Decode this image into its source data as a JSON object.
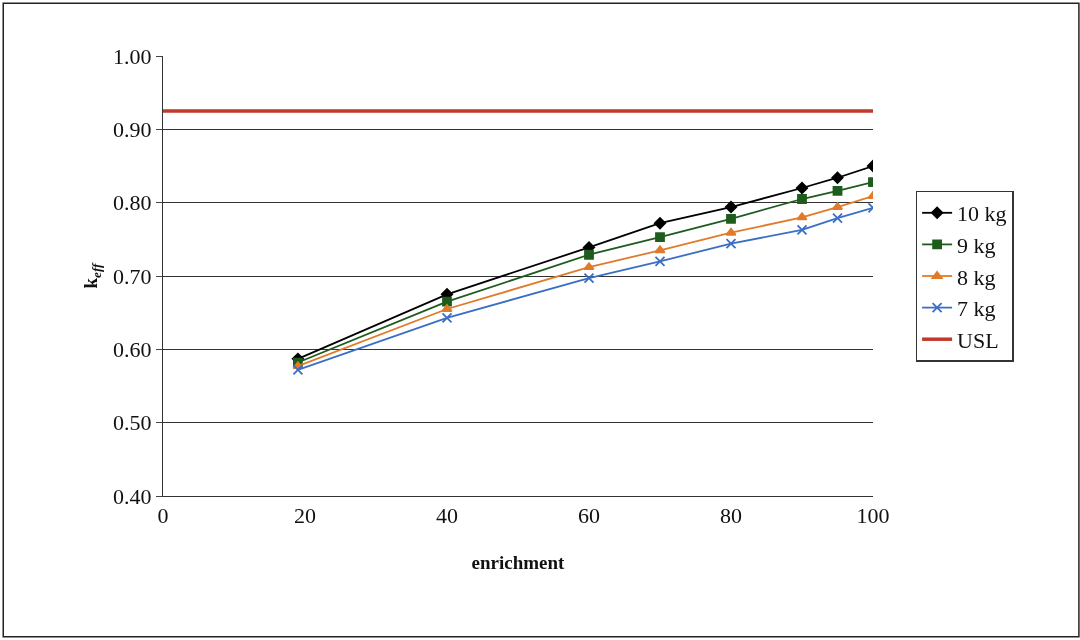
{
  "chart_data": {
    "type": "line",
    "xlabel": "enrichment",
    "ylabel": "k$_{eff}$",
    "x": [
      19,
      40,
      60,
      70,
      80,
      90,
      95,
      100
    ],
    "xlim": [
      0,
      100
    ],
    "xticks": [
      0,
      20,
      40,
      60,
      80,
      100
    ],
    "ylim": [
      0.4,
      1.0
    ],
    "yticks": [
      {
        "value": 0.4,
        "label": "0.40"
      },
      {
        "value": 0.5,
        "label": "0.50"
      },
      {
        "value": 0.6,
        "label": "0.60"
      },
      {
        "value": 0.7,
        "label": "0.70"
      },
      {
        "value": 0.8,
        "label": "0.80"
      },
      {
        "value": 0.9,
        "label": "0.90"
      },
      {
        "value": 1.0,
        "label": "1.00"
      }
    ],
    "grid": "y",
    "legend": "right",
    "line_style": "solid",
    "series": [
      {
        "name": "10 kg",
        "color": "#000000",
        "marker": "diamond",
        "values": [
          0.587,
          0.675,
          0.739,
          0.772,
          0.794,
          0.82,
          0.834,
          0.85
        ]
      },
      {
        "name": "9 kg",
        "color": "#1e5c1e",
        "marker": "square",
        "values": [
          0.582,
          0.665,
          0.729,
          0.753,
          0.778,
          0.805,
          0.816,
          0.828
        ]
      },
      {
        "name": "8 kg",
        "color": "#e07b2a",
        "marker": "triangle",
        "values": [
          0.577,
          0.655,
          0.712,
          0.735,
          0.759,
          0.78,
          0.794,
          0.809
        ]
      },
      {
        "name": "7 kg",
        "color": "#3a6fc4",
        "marker": "cross",
        "values": [
          0.572,
          0.643,
          0.697,
          0.72,
          0.744,
          0.763,
          0.779,
          0.793
        ]
      }
    ],
    "ref_lines": [
      {
        "axis": "y",
        "value": 0.925,
        "label": "USL",
        "color": "#c0392b",
        "line_style": "solid"
      }
    ]
  }
}
